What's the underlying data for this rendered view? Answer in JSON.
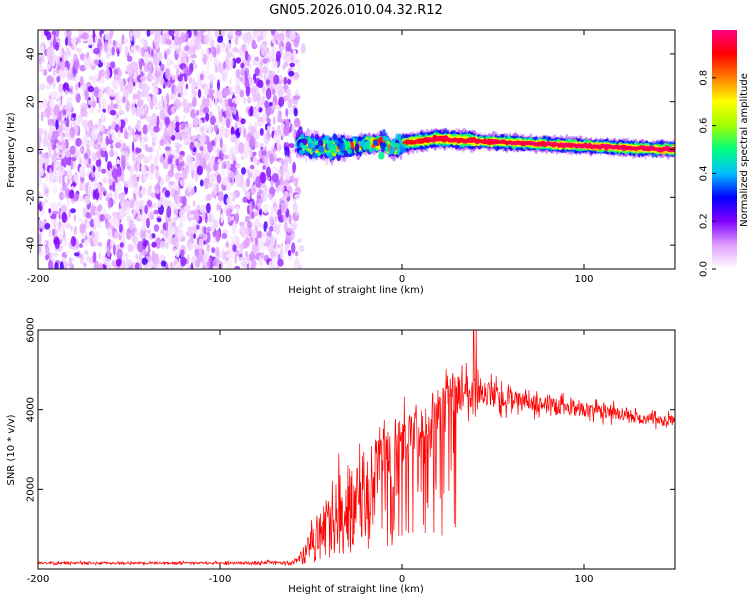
{
  "title": "GN05.2026.010.04.32.R12",
  "chart_data": [
    {
      "type": "heatmap",
      "name": "spectrogram",
      "xlabel": "Height of straight line (km)",
      "ylabel": "Frequency (Hz)",
      "xlim": [
        -200,
        150
      ],
      "ylim": [
        -50,
        50
      ],
      "xticks": [
        -200,
        -100,
        0,
        100
      ],
      "yticks": [
        -40,
        -20,
        0,
        20,
        40
      ],
      "colorbar": {
        "label": "Normalized spectral amplitude",
        "range": [
          0,
          1
        ],
        "ticks": [
          0.0,
          0.2,
          0.4,
          0.6,
          0.8
        ],
        "tick_labels": [
          "0.0",
          "0.2",
          "0.4",
          "0.6",
          "0.8"
        ],
        "colors": [
          "#ffffff",
          "#e0a0ff",
          "#8000ff",
          "#0000ff",
          "#00c0ff",
          "#00ff80",
          "#a0ff00",
          "#ffff00",
          "#ff8000",
          "#ff0000",
          "#ff0080"
        ]
      },
      "noise_region": {
        "x_range": [
          -200,
          -57
        ],
        "freq_range": [
          -50,
          50
        ],
        "amplitude": [
          0.0,
          0.25
        ]
      },
      "signal_track": [
        {
          "x": -57,
          "freq": 2.0,
          "amplitude": 0.3
        },
        {
          "x": -50,
          "freq": 1.5,
          "amplitude": 0.4
        },
        {
          "x": -40,
          "freq": 0.5,
          "amplitude": 0.5
        },
        {
          "x": -30,
          "freq": 1.0,
          "amplitude": 0.6
        },
        {
          "x": -20,
          "freq": 2.0,
          "amplitude": 0.7
        },
        {
          "x": -10,
          "freq": 3.0,
          "amplitude": 0.75
        },
        {
          "x": -5,
          "freq": 0.0,
          "amplitude": 0.7
        },
        {
          "x": 0,
          "freq": 2.5,
          "amplitude": 0.75
        },
        {
          "x": 10,
          "freq": 3.5,
          "amplitude": 0.8
        },
        {
          "x": 20,
          "freq": 4.5,
          "amplitude": 0.85
        },
        {
          "x": 30,
          "freq": 4.0,
          "amplitude": 0.8
        },
        {
          "x": 40,
          "freq": 3.5,
          "amplitude": 0.85
        },
        {
          "x": 55,
          "freq": 3.0,
          "amplitude": 0.85
        },
        {
          "x": 70,
          "freq": 2.5,
          "amplitude": 0.9
        },
        {
          "x": 85,
          "freq": 2.0,
          "amplitude": 0.9
        },
        {
          "x": 100,
          "freq": 1.5,
          "amplitude": 0.95
        },
        {
          "x": 115,
          "freq": 1.0,
          "amplitude": 0.95
        },
        {
          "x": 130,
          "freq": 0.5,
          "amplitude": 0.9
        },
        {
          "x": 150,
          "freq": 0.0,
          "amplitude": 0.95
        }
      ]
    },
    {
      "type": "line",
      "name": "snr",
      "xlabel": "Height of straight line (km)",
      "ylabel": "SNR (10 * v/v)",
      "xlim": [
        -200,
        150
      ],
      "ylim": [
        0,
        6000
      ],
      "xticks": [
        -200,
        -100,
        0,
        100
      ],
      "yticks": [
        2000,
        4000,
        6000
      ],
      "color": "#ff0000",
      "series": [
        {
          "name": "SNR",
          "x": [
            -200,
            -150,
            -100,
            -60,
            -55,
            -50,
            -45,
            -40,
            -35,
            -30,
            -25,
            -20,
            -15,
            -10,
            -5,
            0,
            5,
            10,
            15,
            20,
            25,
            30,
            35,
            40,
            45,
            50,
            55,
            60,
            70,
            80,
            90,
            100,
            110,
            120,
            130,
            140,
            150
          ],
          "values": [
            150,
            150,
            150,
            160,
            350,
            700,
            1000,
            1300,
            1600,
            1850,
            2050,
            2250,
            2500,
            2650,
            2800,
            3100,
            3350,
            3600,
            3800,
            3950,
            4250,
            4450,
            4500,
            4500,
            4450,
            4350,
            4300,
            4250,
            4150,
            4100,
            4050,
            4000,
            3950,
            3900,
            3800,
            3750,
            3700
          ],
          "noise_amplitude": [
            40,
            40,
            40,
            60,
            200,
            400,
            600,
            900,
            1000,
            1100,
            1100,
            1100,
            1100,
            1100,
            1100,
            1000,
            950,
            900,
            850,
            800,
            800,
            800,
            700,
            600,
            500,
            450,
            400,
            350,
            300,
            300,
            280,
            260,
            250,
            240,
            220,
            200,
            200
          ]
        }
      ]
    }
  ]
}
